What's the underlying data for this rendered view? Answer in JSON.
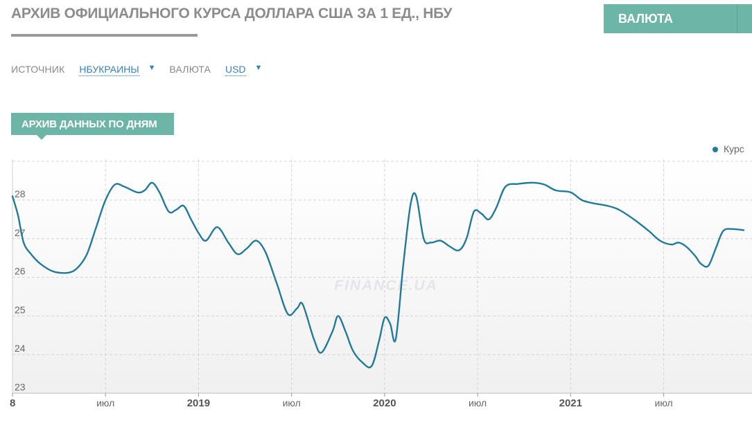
{
  "header": {
    "title": "АРХИВ ОФИЦИАЛЬНОГО КУРСА ДОЛЛАРА США ЗА 1 ЕД., НБУ",
    "currency_button": "ВАЛЮТА"
  },
  "filters": {
    "source_label": "ИСТОЧНИК",
    "source_value": "НБУКРАИНЫ",
    "currency_label": "ВАЛЮТА",
    "currency_value": "USD"
  },
  "section": {
    "tab_label": "АРХИВ ДАННЫХ ПО ДНЯМ"
  },
  "colors": {
    "accent": "#6cb5a7",
    "line": "#217a97"
  },
  "watermark": "FINANCE.UA",
  "chart_data": {
    "type": "line",
    "ylim": [
      22.9,
      29.0
    ],
    "y_ticks": [
      23,
      24,
      25,
      26,
      27,
      28
    ],
    "x_tick_labels": [
      "8",
      "июл",
      "2019",
      "июл",
      "2020",
      "июл",
      "2021",
      "июл"
    ],
    "x_tick_bold": [
      true,
      false,
      true,
      false,
      true,
      false,
      true,
      false
    ],
    "x_tick_t": [
      0,
      0.5,
      1.0,
      1.5,
      2.0,
      2.5,
      3.0,
      3.5
    ],
    "xlim_t": [
      0,
      3.97
    ],
    "grid": true,
    "legend_position": "top-right",
    "series": [
      {
        "name": "Курс",
        "points": [
          [
            0.0,
            28.1
          ],
          [
            0.03,
            27.6
          ],
          [
            0.06,
            26.9
          ],
          [
            0.1,
            26.6
          ],
          [
            0.15,
            26.35
          ],
          [
            0.22,
            26.15
          ],
          [
            0.3,
            26.12
          ],
          [
            0.35,
            26.25
          ],
          [
            0.4,
            26.6
          ],
          [
            0.45,
            27.3
          ],
          [
            0.5,
            28.0
          ],
          [
            0.55,
            28.4
          ],
          [
            0.6,
            28.35
          ],
          [
            0.67,
            28.2
          ],
          [
            0.71,
            28.25
          ],
          [
            0.75,
            28.45
          ],
          [
            0.79,
            28.2
          ],
          [
            0.84,
            27.7
          ],
          [
            0.88,
            27.75
          ],
          [
            0.92,
            27.85
          ],
          [
            0.96,
            27.5
          ],
          [
            1.0,
            27.15
          ],
          [
            1.04,
            26.95
          ],
          [
            1.1,
            27.3
          ],
          [
            1.16,
            26.9
          ],
          [
            1.21,
            26.6
          ],
          [
            1.26,
            26.75
          ],
          [
            1.31,
            26.95
          ],
          [
            1.36,
            26.65
          ],
          [
            1.42,
            25.85
          ],
          [
            1.48,
            25.05
          ],
          [
            1.53,
            25.2
          ],
          [
            1.56,
            25.3
          ],
          [
            1.62,
            24.4
          ],
          [
            1.66,
            24.05
          ],
          [
            1.72,
            24.6
          ],
          [
            1.75,
            25.0
          ],
          [
            1.79,
            24.6
          ],
          [
            1.83,
            24.1
          ],
          [
            1.88,
            23.8
          ],
          [
            1.93,
            23.7
          ],
          [
            1.97,
            24.35
          ],
          [
            2.0,
            24.95
          ],
          [
            2.03,
            24.8
          ],
          [
            2.06,
            24.4
          ],
          [
            2.1,
            26.3
          ],
          [
            2.14,
            27.9
          ],
          [
            2.17,
            28.1
          ],
          [
            2.21,
            27.0
          ],
          [
            2.25,
            26.9
          ],
          [
            2.3,
            26.95
          ],
          [
            2.35,
            26.8
          ],
          [
            2.4,
            26.7
          ],
          [
            2.44,
            27.0
          ],
          [
            2.48,
            27.7
          ],
          [
            2.52,
            27.65
          ],
          [
            2.56,
            27.5
          ],
          [
            2.6,
            27.8
          ],
          [
            2.65,
            28.35
          ],
          [
            2.72,
            28.42
          ],
          [
            2.8,
            28.45
          ],
          [
            2.86,
            28.4
          ],
          [
            2.92,
            28.25
          ],
          [
            3.0,
            28.2
          ],
          [
            3.06,
            28.0
          ],
          [
            3.12,
            27.92
          ],
          [
            3.2,
            27.85
          ],
          [
            3.26,
            27.75
          ],
          [
            3.34,
            27.5
          ],
          [
            3.42,
            27.2
          ],
          [
            3.48,
            26.95
          ],
          [
            3.54,
            26.85
          ],
          [
            3.58,
            26.9
          ],
          [
            3.62,
            26.8
          ],
          [
            3.67,
            26.55
          ],
          [
            3.7,
            26.35
          ],
          [
            3.74,
            26.3
          ],
          [
            3.78,
            26.75
          ],
          [
            3.82,
            27.2
          ],
          [
            3.87,
            27.25
          ],
          [
            3.93,
            27.22
          ]
        ]
      }
    ]
  }
}
